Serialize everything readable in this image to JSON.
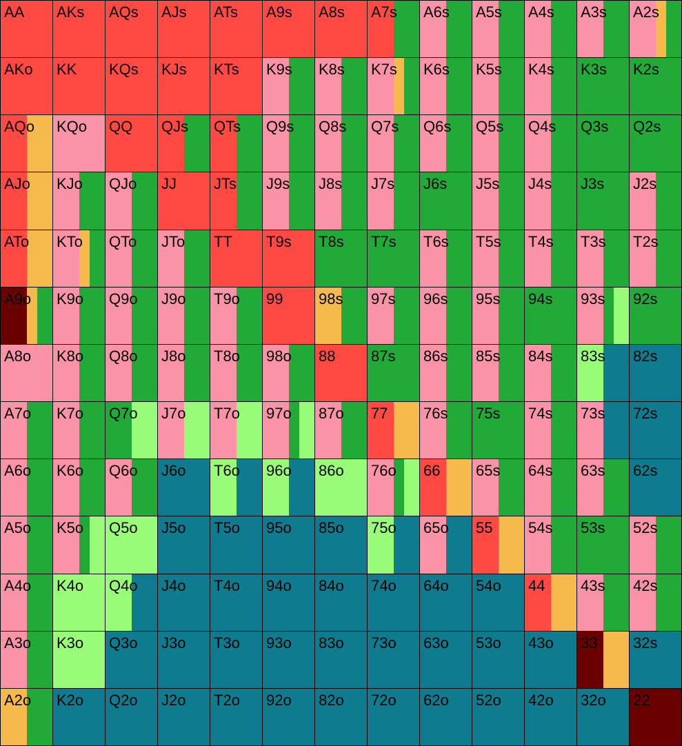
{
  "legend_colors": {
    "R": "#ff4a44",
    "P": "#fa93a8",
    "G": "#22aa38",
    "O": "#f6b94c",
    "L": "#99fc78",
    "T": "#0e7b8f",
    "D": "#6b0000"
  },
  "grid": [
    [
      [
        "AA",
        "R10"
      ],
      [
        "AKs",
        "R10"
      ],
      [
        "AQs",
        "R10"
      ],
      [
        "AJs",
        "R10"
      ],
      [
        "ATs",
        "R10"
      ],
      [
        "A9s",
        "R10"
      ],
      [
        "A8s",
        "R10"
      ],
      [
        "A7s",
        "R5 G5"
      ],
      [
        "A6s",
        "P5 G5"
      ],
      [
        "A5s",
        "P5 G5"
      ],
      [
        "A4s",
        "P5 G5"
      ],
      [
        "A3s",
        "P5 G5"
      ],
      [
        "A2s",
        "P5 O2 G3"
      ]
    ],
    [
      [
        "AKo",
        "R10"
      ],
      [
        "KK",
        "R10"
      ],
      [
        "KQs",
        "R10"
      ],
      [
        "KJs",
        "R10"
      ],
      [
        "KTs",
        "R10"
      ],
      [
        "K9s",
        "P5 G5"
      ],
      [
        "K8s",
        "P5 G5"
      ],
      [
        "K7s",
        "P5 O2 G3"
      ],
      [
        "K6s",
        "P5 G5"
      ],
      [
        "K5s",
        "P5 G5"
      ],
      [
        "K4s",
        "P5 G5"
      ],
      [
        "K3s",
        "G10"
      ],
      [
        "K2s",
        "G10"
      ]
    ],
    [
      [
        "AQo",
        "R5 O5"
      ],
      [
        "KQo",
        "P10"
      ],
      [
        "QQ",
        "R10"
      ],
      [
        "QJs",
        "R5 G5"
      ],
      [
        "QTs",
        "R5 G5"
      ],
      [
        "Q9s",
        "P5 G5"
      ],
      [
        "Q8s",
        "P5 G5"
      ],
      [
        "Q7s",
        "P5 G5"
      ],
      [
        "Q6s",
        "P5 G5"
      ],
      [
        "Q5s",
        "P5 G5"
      ],
      [
        "Q4s",
        "P5 G5"
      ],
      [
        "Q3s",
        "G10"
      ],
      [
        "Q2s",
        "G10"
      ]
    ],
    [
      [
        "AJo",
        "R5 O5"
      ],
      [
        "KJo",
        "P5 G5"
      ],
      [
        "QJo",
        "P5 G5"
      ],
      [
        "JJ",
        "R10"
      ],
      [
        "JTs",
        "R5 G5"
      ],
      [
        "J9s",
        "P5 G5"
      ],
      [
        "J8s",
        "P5 G5"
      ],
      [
        "J7s",
        "P5 G5"
      ],
      [
        "J6s",
        "G10"
      ],
      [
        "J5s",
        "P5 G5"
      ],
      [
        "J4s",
        "P5 G5"
      ],
      [
        "J3s",
        "G10"
      ],
      [
        "J2s",
        "P5 G5"
      ]
    ],
    [
      [
        "ATo",
        "R5 O5"
      ],
      [
        "KTo",
        "P5 O2 G3"
      ],
      [
        "QTo",
        "P5 G5"
      ],
      [
        "JTo",
        "P5 G5"
      ],
      [
        "TT",
        "R10"
      ],
      [
        "T9s",
        "R10"
      ],
      [
        "T8s",
        "G10"
      ],
      [
        "T7s",
        "G10"
      ],
      [
        "T6s",
        "P5 G5"
      ],
      [
        "T5s",
        "P5 G5"
      ],
      [
        "T4s",
        "P5 G5"
      ],
      [
        "T3s",
        "P5 G5"
      ],
      [
        "T2s",
        "P5 G5"
      ]
    ],
    [
      [
        "A9o",
        "D5 O2 G3"
      ],
      [
        "K9o",
        "P5 G5"
      ],
      [
        "Q9o",
        "P5 G5"
      ],
      [
        "J9o",
        "P5 G5"
      ],
      [
        "T9o",
        "P5 G5"
      ],
      [
        "99",
        "R10"
      ],
      [
        "98s",
        "O5 G5"
      ],
      [
        "97s",
        "P5 G5"
      ],
      [
        "96s",
        "P5 G5"
      ],
      [
        "95s",
        "P5 G5"
      ],
      [
        "94s",
        "G10"
      ],
      [
        "93s",
        "P5 G2 L3"
      ],
      [
        "92s",
        "G10"
      ]
    ],
    [
      [
        "A8o",
        "P10"
      ],
      [
        "K8o",
        "P5 G5"
      ],
      [
        "Q8o",
        "P5 G5"
      ],
      [
        "J8o",
        "P5 G5"
      ],
      [
        "T8o",
        "P5 G5"
      ],
      [
        "98o",
        "P5 G5"
      ],
      [
        "88",
        "R10"
      ],
      [
        "87s",
        "G10"
      ],
      [
        "86s",
        "P5 G5"
      ],
      [
        "85s",
        "P5 G5"
      ],
      [
        "84s",
        "P5 G5"
      ],
      [
        "83s",
        "L5 T5"
      ],
      [
        "82s",
        "T10"
      ]
    ],
    [
      [
        "A7o",
        "P5 G5"
      ],
      [
        "K7o",
        "P5 G5"
      ],
      [
        "Q7o",
        "G5 L5"
      ],
      [
        "J7o",
        "P5 L5"
      ],
      [
        "T7o",
        "P5 L5"
      ],
      [
        "97o",
        "P5 G2 L3"
      ],
      [
        "87o",
        "P5 G5"
      ],
      [
        "77",
        "R5 O5"
      ],
      [
        "76s",
        "P5 G5"
      ],
      [
        "75s",
        "G10"
      ],
      [
        "74s",
        "P5 G5"
      ],
      [
        "73s",
        "P5 T5"
      ],
      [
        "72s",
        "T10"
      ]
    ],
    [
      [
        "A6o",
        "P5 G5"
      ],
      [
        "K6o",
        "P5 G5"
      ],
      [
        "Q6o",
        "P5 G5"
      ],
      [
        "J6o",
        "T10"
      ],
      [
        "T6o",
        "L5 T5"
      ],
      [
        "96o",
        "L5 T5"
      ],
      [
        "86o",
        "L10"
      ],
      [
        "76o",
        "P5 G2 L3"
      ],
      [
        "66",
        "R5 O5"
      ],
      [
        "65s",
        "P5 G5"
      ],
      [
        "64s",
        "P5 G5"
      ],
      [
        "63s",
        "P5 G5"
      ],
      [
        "62s",
        "T10"
      ]
    ],
    [
      [
        "A5o",
        "P5 G5"
      ],
      [
        "K5o",
        "P5 G2 L3"
      ],
      [
        "Q5o",
        "L10"
      ],
      [
        "J5o",
        "T10"
      ],
      [
        "T5o",
        "T10"
      ],
      [
        "95o",
        "T10"
      ],
      [
        "85o",
        "T10"
      ],
      [
        "75o",
        "L5 T5"
      ],
      [
        "65o",
        "P5 T5"
      ],
      [
        "55",
        "R5 O5"
      ],
      [
        "54s",
        "P5 G5"
      ],
      [
        "53s",
        "G10"
      ],
      [
        "52s",
        "P5 G5"
      ]
    ],
    [
      [
        "A4o",
        "P5 G5"
      ],
      [
        "K4o",
        "L10"
      ],
      [
        "Q4o",
        "L5 T5"
      ],
      [
        "J4o",
        "T10"
      ],
      [
        "T4o",
        "T10"
      ],
      [
        "94o",
        "T10"
      ],
      [
        "84o",
        "T10"
      ],
      [
        "74o",
        "T10"
      ],
      [
        "64o",
        "T10"
      ],
      [
        "54o",
        "T10"
      ],
      [
        "44",
        "R5 O5"
      ],
      [
        "43s",
        "P5 G5"
      ],
      [
        "42s",
        "P5 G5"
      ]
    ],
    [
      [
        "A3o",
        "P5 G5"
      ],
      [
        "K3o",
        "L10"
      ],
      [
        "Q3o",
        "T10"
      ],
      [
        "J3o",
        "T10"
      ],
      [
        "T3o",
        "T10"
      ],
      [
        "93o",
        "T10"
      ],
      [
        "83o",
        "T10"
      ],
      [
        "73o",
        "T10"
      ],
      [
        "63o",
        "T10"
      ],
      [
        "53o",
        "T10"
      ],
      [
        "43o",
        "T10"
      ],
      [
        "33",
        "D5 O5"
      ],
      [
        "32s",
        "T10"
      ]
    ],
    [
      [
        "A2o",
        "O5 G5"
      ],
      [
        "K2o",
        "T10"
      ],
      [
        "Q2o",
        "T10"
      ],
      [
        "J2o",
        "T10"
      ],
      [
        "T2o",
        "T10"
      ],
      [
        "92o",
        "T10"
      ],
      [
        "82o",
        "T10"
      ],
      [
        "72o",
        "T10"
      ],
      [
        "62o",
        "T10"
      ],
      [
        "52o",
        "T10"
      ],
      [
        "42o",
        "T10"
      ],
      [
        "32o",
        "T10"
      ],
      [
        "22",
        "D10"
      ]
    ]
  ]
}
